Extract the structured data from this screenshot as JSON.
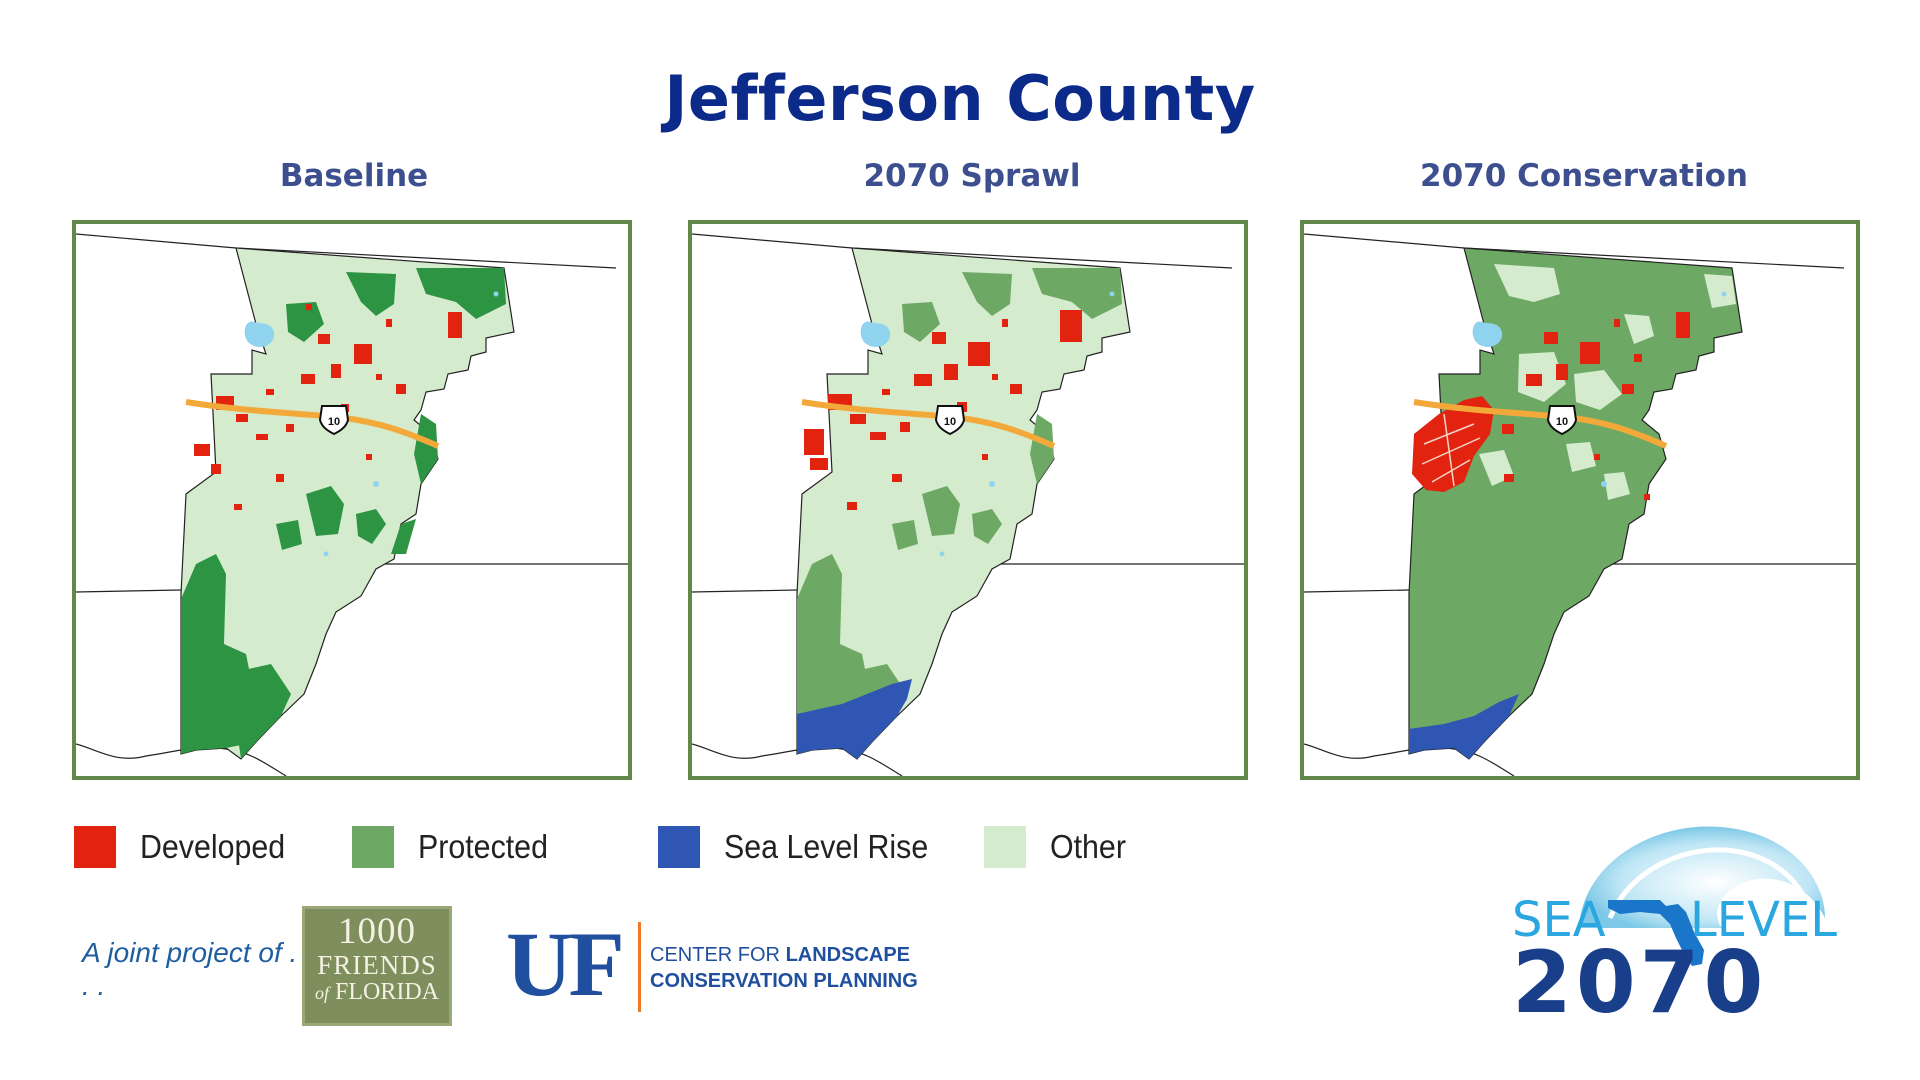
{
  "title": "Jefferson County",
  "panels": [
    {
      "id": "baseline",
      "label": "Baseline"
    },
    {
      "id": "sprawl",
      "label": "2070 Sprawl"
    },
    {
      "id": "conservation",
      "label": "2070 Conservation"
    }
  ],
  "highway_shield": "10",
  "legend": [
    {
      "label": "Developed",
      "color": "#e2230f"
    },
    {
      "label": "Protected",
      "color": "#6ea865"
    },
    {
      "label": "Sea Level Rise",
      "color": "#2f56b3"
    },
    {
      "label": "Other",
      "color": "#d5ebcd"
    }
  ],
  "footer": {
    "joint_project": "A joint project of . . .",
    "friends_logo": {
      "line1": "1000",
      "line2": "FRIENDS",
      "line3_prefix": "of",
      "line3": "FLORIDA"
    },
    "uf_logo": {
      "mark": "UF",
      "line1_a": "CENTER FOR ",
      "line1_b": "LANDSCAPE",
      "line2": "CONSERVATION PLANNING"
    },
    "sea_level_logo": {
      "word1": "SEA",
      "word2": "LEVEL",
      "year": "2070"
    }
  },
  "colors": {
    "title": "#0b2a8a",
    "panel_title": "#3d4f8f",
    "frame": "#62884a",
    "baseline_protected": "#2d9444",
    "interstate": "#f3a93a",
    "water": "#8fd3ef"
  }
}
